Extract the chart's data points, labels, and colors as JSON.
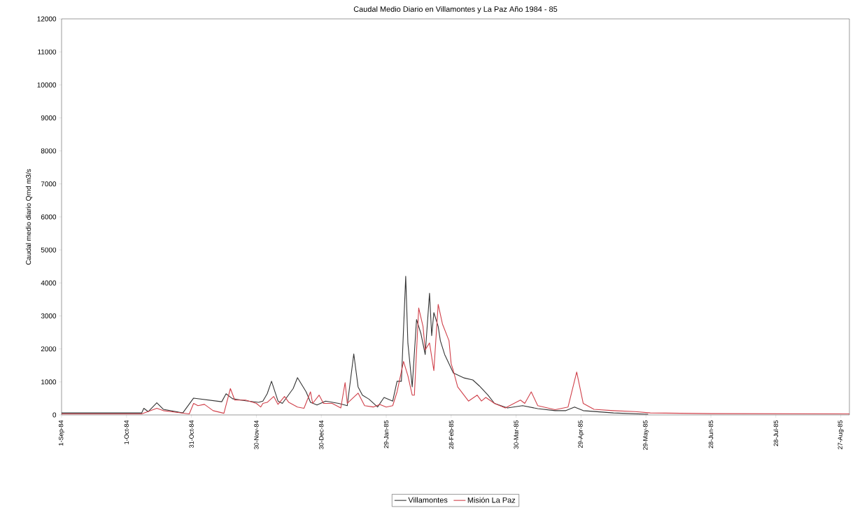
{
  "chart_data": {
    "type": "line",
    "title": "Caudal Medio Diario en Villamontes y La Paz  Año 1984 - 85",
    "ylabel": "Caudal medio diario  Qmd m3/s",
    "xlim": [
      "1984-09-01",
      "1985-08-31"
    ],
    "xticks": [
      {
        "value": "1984-09-01",
        "label": "1-Sep-84"
      },
      {
        "value": "1984-10-01",
        "label": "1-Oct-84"
      },
      {
        "value": "1984-10-31",
        "label": "31-Oct-84"
      },
      {
        "value": "1984-11-30",
        "label": "30-Nov-84"
      },
      {
        "value": "1984-12-30",
        "label": "30-Dec-84"
      },
      {
        "value": "1985-01-29",
        "label": "29-Jan-85"
      },
      {
        "value": "1985-02-28",
        "label": "28-Feb-85"
      },
      {
        "value": "1985-03-30",
        "label": "30-Mar-85"
      },
      {
        "value": "1985-04-29",
        "label": "29-Apr-85"
      },
      {
        "value": "1985-05-29",
        "label": "29-May-85"
      },
      {
        "value": "1985-06-28",
        "label": "28-Jun-85"
      },
      {
        "value": "1985-07-28",
        "label": "28-Jul-85"
      },
      {
        "value": "1985-08-27",
        "label": "27-Aug-85"
      }
    ],
    "ylim": [
      0,
      12000
    ],
    "yticks": [
      0,
      1000,
      2000,
      3000,
      4000,
      5000,
      6000,
      7000,
      8000,
      9000,
      10000,
      11000,
      12000
    ],
    "legend": "bottom",
    "marker": "none",
    "line_style": "solid",
    "series": [
      {
        "name": "Villamontes",
        "color": "#333333",
        "x": [
          "1984-09-01",
          "1984-10-08",
          "1984-10-09",
          "1984-10-11",
          "1984-10-15",
          "1984-10-18",
          "1984-10-27",
          "1984-11-01",
          "1984-11-14",
          "1984-11-16",
          "1984-11-19",
          "1984-11-25",
          "1984-12-01",
          "1984-12-03",
          "1984-12-05",
          "1984-12-07",
          "1984-12-10",
          "1984-12-12",
          "1984-12-17",
          "1984-12-19",
          "1984-12-23",
          "1984-12-25",
          "1984-12-28",
          "1985-01-01",
          "1985-01-07",
          "1985-01-11",
          "1985-01-14",
          "1985-01-16",
          "1985-01-18",
          "1985-01-21",
          "1985-01-25",
          "1985-01-28",
          "1985-02-01",
          "1985-02-03",
          "1985-02-05",
          "1985-02-07",
          "1985-02-08",
          "1985-02-10",
          "1985-02-12",
          "1985-02-14",
          "1985-02-16",
          "1985-02-18",
          "1985-02-19",
          "1985-02-20",
          "1985-02-22",
          "1985-02-23",
          "1985-02-25",
          "1985-02-27",
          "1985-03-01",
          "1985-03-06",
          "1985-03-10",
          "1985-03-13",
          "1985-03-17",
          "1985-03-20",
          "1985-03-26",
          "1985-04-02",
          "1985-04-09",
          "1985-04-17",
          "1985-04-22",
          "1985-04-26",
          "1985-04-30",
          "1985-05-14",
          "1985-05-30"
        ],
        "values": [
          60,
          60,
          200,
          100,
          370,
          170,
          60,
          510,
          400,
          640,
          490,
          430,
          380,
          420,
          640,
          1020,
          420,
          350,
          800,
          1130,
          700,
          380,
          300,
          420,
          350,
          280,
          1850,
          850,
          600,
          480,
          240,
          530,
          420,
          1020,
          1020,
          4200,
          2180,
          850,
          2890,
          2470,
          1830,
          3690,
          2400,
          3100,
          2680,
          2250,
          1830,
          1550,
          1270,
          1120,
          1060,
          880,
          600,
          350,
          210,
          280,
          190,
          130,
          130,
          240,
          130,
          60,
          20
        ]
      },
      {
        "name": "Misión La Paz",
        "color": "#d0404a",
        "x": [
          "1984-09-01",
          "1984-10-08",
          "1984-10-15",
          "1984-10-18",
          "1984-10-30",
          "1984-11-01",
          "1984-11-03",
          "1984-11-06",
          "1984-11-10",
          "1984-11-15",
          "1984-11-18",
          "1984-11-20",
          "1984-11-25",
          "1984-11-30",
          "1984-12-02",
          "1984-12-03",
          "1984-12-05",
          "1984-12-08",
          "1984-12-10",
          "1984-12-13",
          "1984-12-15",
          "1984-12-19",
          "1984-12-22",
          "1984-12-25",
          "1984-12-26",
          "1984-12-29",
          "1984-12-31",
          "1985-01-04",
          "1985-01-08",
          "1985-01-10",
          "1985-01-11",
          "1985-01-16",
          "1985-01-19",
          "1985-01-23",
          "1985-01-26",
          "1985-01-29",
          "1985-02-01",
          "1985-02-03",
          "1985-02-06",
          "1985-02-08",
          "1985-02-10",
          "1985-02-11",
          "1985-02-13",
          "1985-02-15",
          "1985-02-16",
          "1985-02-18",
          "1985-02-20",
          "1985-02-22",
          "1985-02-24",
          "1985-02-27",
          "1985-02-28",
          "1985-03-01",
          "1985-03-03",
          "1985-03-08",
          "1985-03-12",
          "1985-03-14",
          "1985-03-16",
          "1985-03-20",
          "1985-03-25",
          "1985-04-01",
          "1985-04-03",
          "1985-04-06",
          "1985-04-09",
          "1985-04-17",
          "1985-04-23",
          "1985-04-27",
          "1985-04-30",
          "1985-05-05",
          "1985-05-14",
          "1985-05-24",
          "1985-05-31",
          "1985-06-28",
          "1985-08-31"
        ],
        "values": [
          30,
          30,
          200,
          130,
          30,
          350,
          280,
          320,
          130,
          50,
          800,
          450,
          450,
          350,
          240,
          350,
          380,
          560,
          320,
          560,
          380,
          240,
          200,
          700,
          350,
          600,
          350,
          350,
          210,
          980,
          350,
          660,
          280,
          240,
          320,
          240,
          280,
          700,
          1620,
          1190,
          600,
          600,
          3240,
          2680,
          1970,
          2180,
          1340,
          3350,
          2750,
          2250,
          1550,
          1340,
          850,
          420,
          600,
          420,
          530,
          350,
          210,
          450,
          350,
          700,
          280,
          160,
          240,
          1300,
          350,
          170,
          130,
          100,
          60,
          40,
          30
        ]
      }
    ]
  }
}
